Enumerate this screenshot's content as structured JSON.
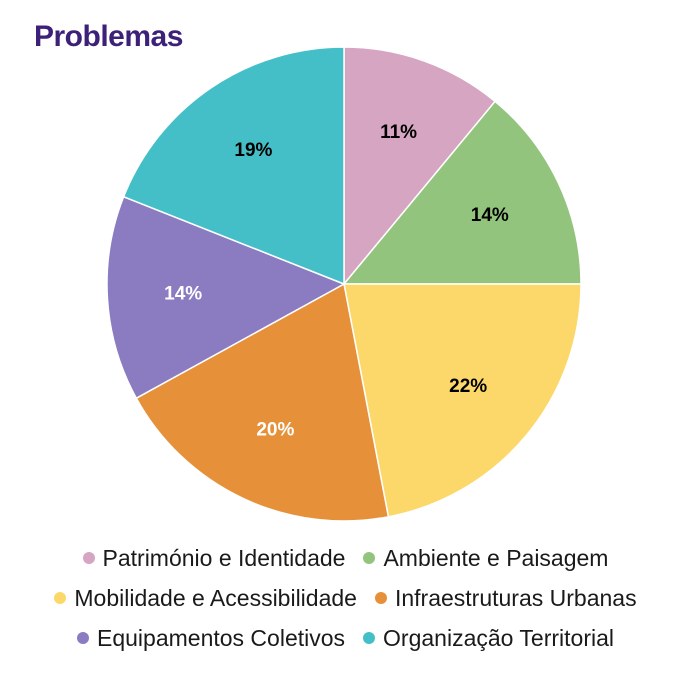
{
  "chart_data": {
    "type": "pie",
    "title": "Problemas",
    "start": "top",
    "direction": "clockwise",
    "slices": [
      {
        "name": "Património e Identidade",
        "value": 11,
        "label": "11%",
        "color": "#d5a5c1",
        "label_color": "#000000"
      },
      {
        "name": "Ambiente e Paisagem",
        "value": 14,
        "label": "14%",
        "color": "#93c47d",
        "label_color": "#000000"
      },
      {
        "name": "Mobilidade e Acessibilidade",
        "value": 22,
        "label": "22%",
        "color": "#fcd86a",
        "label_color": "#000000"
      },
      {
        "name": "Infraestruturas Urbanas",
        "value": 20,
        "label": "20%",
        "color": "#e6913a",
        "label_color": "#ffffff"
      },
      {
        "name": "Equipamentos Coletivos",
        "value": 14,
        "label": "14%",
        "color": "#8b7cc2",
        "label_color": "#ffffff"
      },
      {
        "name": "Organização Territorial",
        "value": 19,
        "label": "19%",
        "color": "#45bfc7",
        "label_color": "#000000"
      }
    ],
    "legend_position": "bottom"
  }
}
